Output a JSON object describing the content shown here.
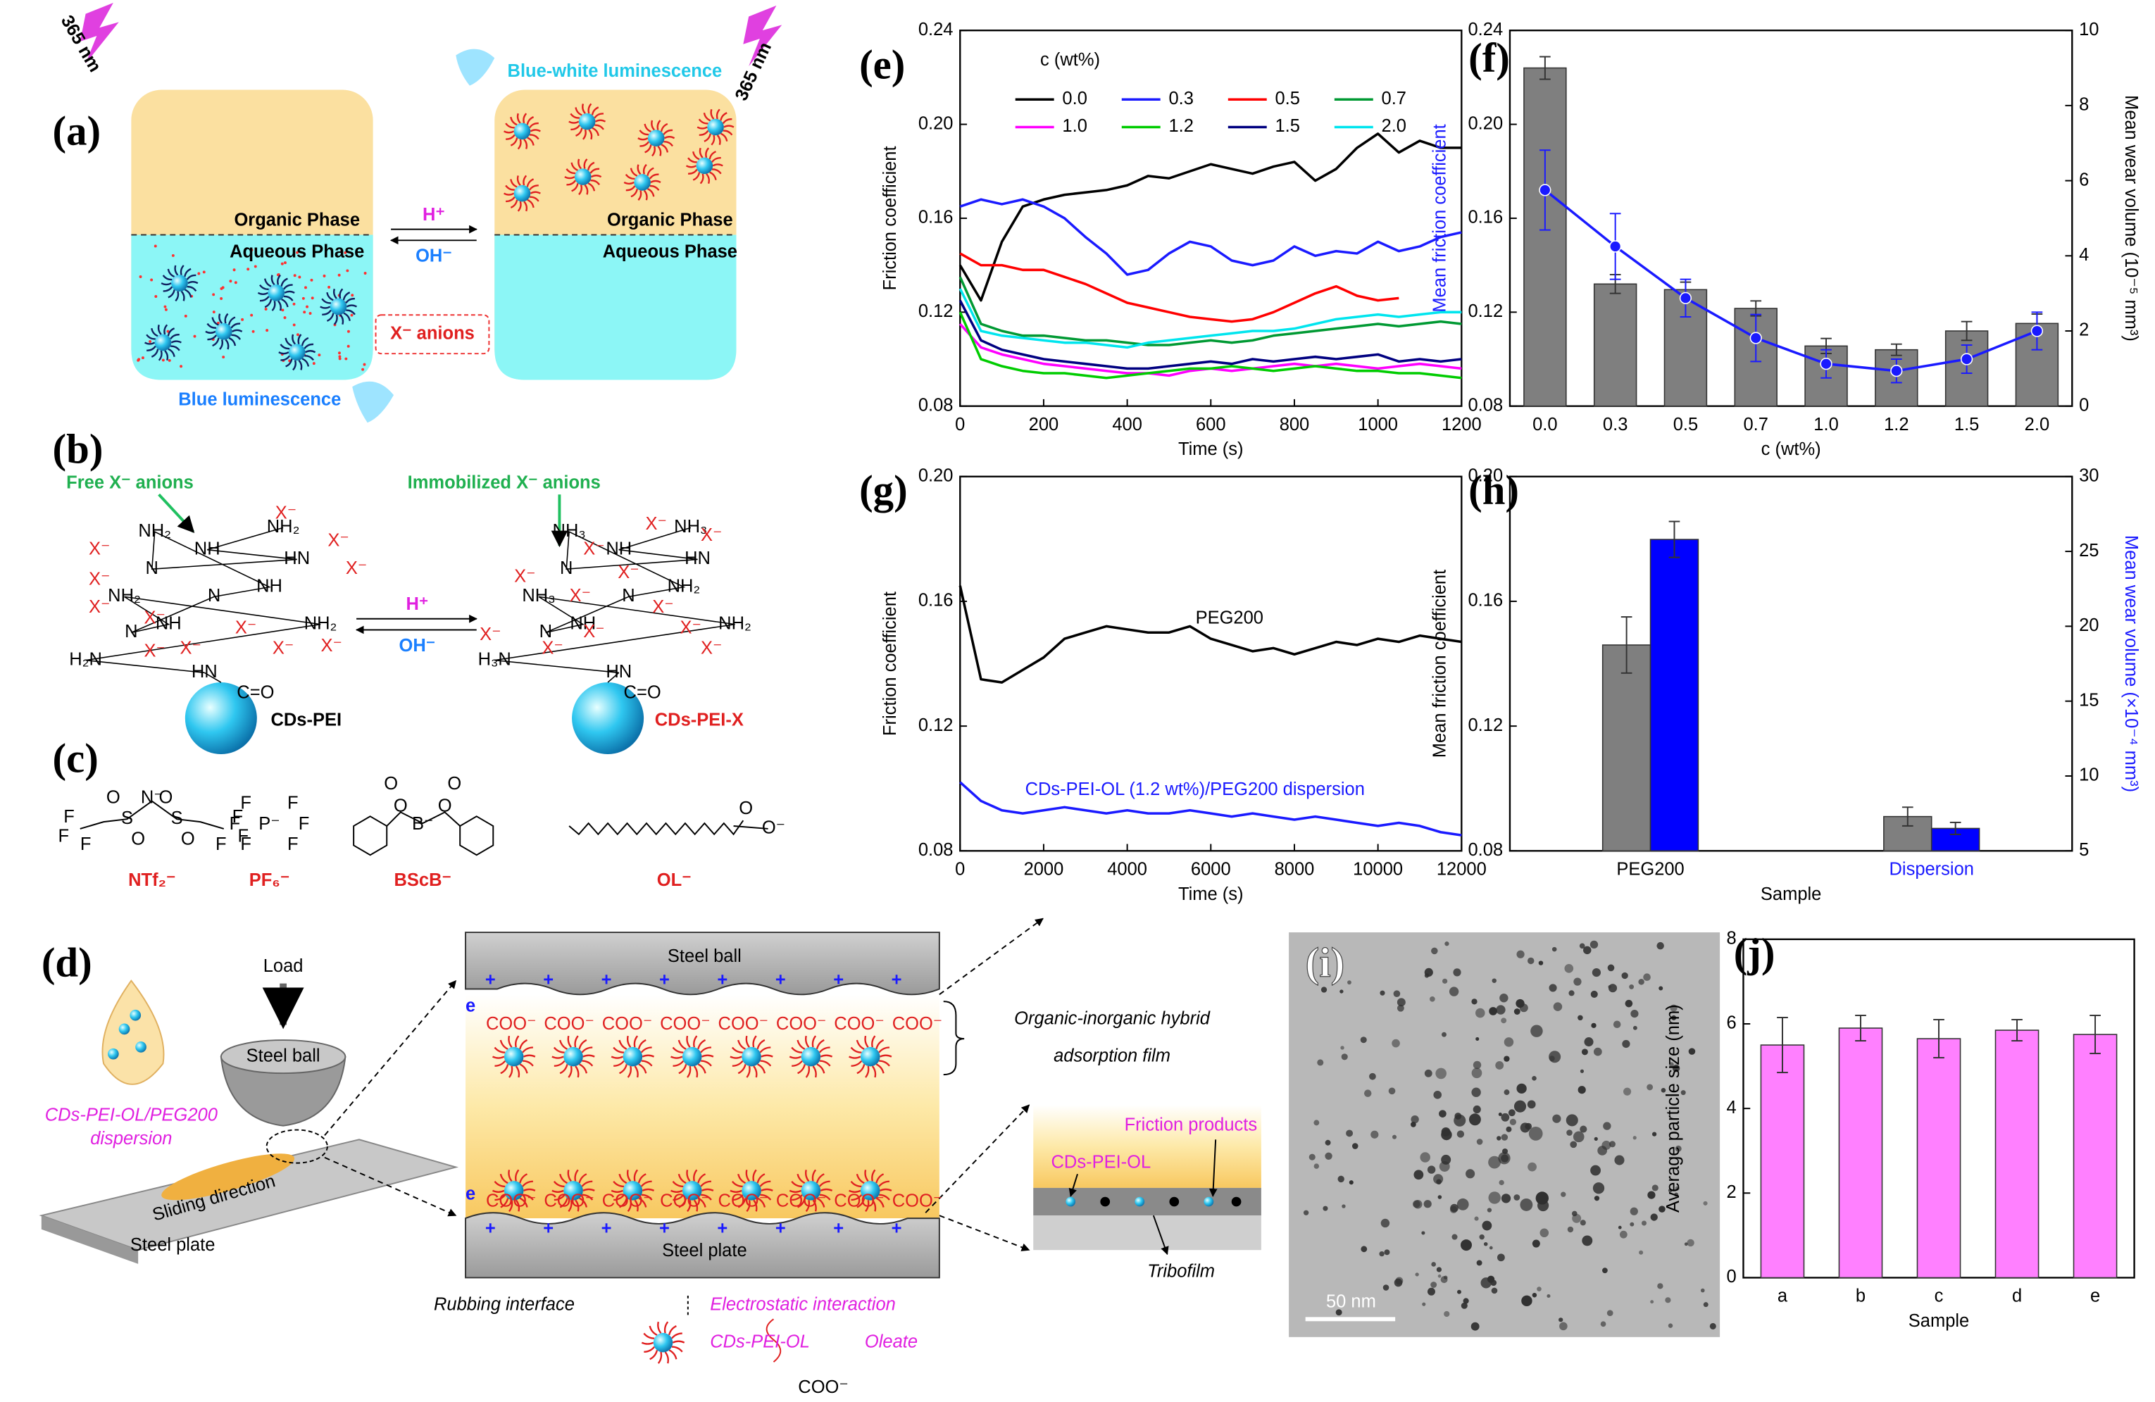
{
  "chart_data": [
    {
      "type": "line",
      "panel": "(e)",
      "xlabel": "Time (s)",
      "ylabel": "Friction coefficient",
      "legend_title": "c (wt%)",
      "legend": "top",
      "x": [
        0,
        50,
        100,
        150,
        200,
        250,
        300,
        350,
        400,
        450,
        500,
        550,
        600,
        650,
        700,
        750,
        800,
        850,
        900,
        950,
        1000,
        1050,
        1100,
        1150,
        1200
      ],
      "series": [
        {
          "name": "0.0",
          "color": "#000000",
          "values": [
            0.14,
            0.125,
            0.15,
            0.165,
            0.168,
            0.17,
            0.171,
            0.172,
            0.174,
            0.178,
            0.177,
            0.18,
            0.183,
            0.181,
            0.179,
            0.182,
            0.184,
            0.176,
            0.181,
            0.19,
            0.196,
            0.188,
            0.193,
            0.19,
            0.19
          ]
        },
        {
          "name": "0.3",
          "color": "#1a1aff",
          "values": [
            0.165,
            0.168,
            0.166,
            0.168,
            0.165,
            0.16,
            0.152,
            0.145,
            0.136,
            0.138,
            0.145,
            0.15,
            0.148,
            0.142,
            0.14,
            0.142,
            0.148,
            0.144,
            0.146,
            0.145,
            0.15,
            0.146,
            0.148,
            0.152,
            0.154
          ]
        },
        {
          "name": "0.5",
          "color": "#ff0000",
          "values": [
            0.145,
            0.14,
            0.14,
            0.138,
            0.138,
            0.135,
            0.132,
            0.128,
            0.124,
            0.122,
            0.12,
            0.118,
            0.117,
            0.116,
            0.117,
            0.12,
            0.124,
            0.128,
            0.131,
            0.127,
            0.125,
            0.126,
            null,
            null,
            null
          ]
        },
        {
          "name": "0.7",
          "color": "#009933",
          "values": [
            0.135,
            0.115,
            0.112,
            0.11,
            0.11,
            0.109,
            0.108,
            0.108,
            0.107,
            0.106,
            0.106,
            0.107,
            0.108,
            0.107,
            0.108,
            0.11,
            0.111,
            0.112,
            0.113,
            0.114,
            0.115,
            0.114,
            0.115,
            0.116,
            0.115
          ]
        },
        {
          "name": "1.0",
          "color": "#ff00ff",
          "values": [
            0.115,
            0.105,
            0.102,
            0.1,
            0.098,
            0.097,
            0.096,
            0.095,
            0.094,
            0.094,
            0.093,
            0.095,
            0.096,
            0.095,
            0.096,
            0.097,
            0.098,
            0.097,
            0.098,
            0.097,
            0.096,
            0.097,
            0.098,
            0.097,
            0.096
          ]
        },
        {
          "name": "1.2",
          "color": "#00cc00",
          "values": [
            0.12,
            0.1,
            0.097,
            0.095,
            0.094,
            0.094,
            0.093,
            0.092,
            0.093,
            0.094,
            0.095,
            0.096,
            0.096,
            0.097,
            0.096,
            0.095,
            0.096,
            0.097,
            0.096,
            0.095,
            0.095,
            0.094,
            0.094,
            0.093,
            0.092
          ]
        },
        {
          "name": "1.5",
          "color": "#000080",
          "values": [
            0.125,
            0.108,
            0.104,
            0.102,
            0.1,
            0.099,
            0.098,
            0.097,
            0.096,
            0.096,
            0.097,
            0.098,
            0.099,
            0.098,
            0.1,
            0.099,
            0.1,
            0.101,
            0.1,
            0.101,
            0.102,
            0.099,
            0.1,
            0.099,
            0.1
          ]
        },
        {
          "name": "2.0",
          "color": "#00e5ee",
          "values": [
            0.13,
            0.112,
            0.11,
            0.109,
            0.108,
            0.107,
            0.107,
            0.106,
            0.105,
            0.107,
            0.108,
            0.109,
            0.11,
            0.111,
            0.112,
            0.112,
            0.113,
            0.115,
            0.117,
            0.118,
            0.119,
            0.118,
            0.119,
            0.12,
            0.12
          ]
        }
      ],
      "xlim": [
        0,
        1200
      ],
      "xticks": [
        0,
        200,
        400,
        600,
        800,
        1000,
        1200
      ],
      "ylim": [
        0.08,
        0.24
      ],
      "yticks": [
        0.08,
        0.12,
        0.16,
        {
          "value": 0.2,
          "label": "0.20"
        },
        0.24
      ]
    },
    {
      "type": "bar",
      "panel": "(f)",
      "categories": [
        "0.0",
        "0.3",
        "0.5",
        "0.7",
        "1.0",
        "1.2",
        "1.5",
        "2.0"
      ],
      "xlabel": "c (wt%)",
      "ylabel": "Mean friction coefficient",
      "ylabel_color": "#1a1aff",
      "y2label": "Mean wear volume (10⁻⁵ mm³)",
      "series": [
        {
          "type": "bar",
          "axis": "y2",
          "color": "#7f7f7f",
          "values": [
            9.0,
            3.25,
            3.1,
            2.6,
            1.6,
            1.5,
            2.0,
            2.2
          ],
          "errors": [
            0.3,
            0.25,
            0.2,
            0.2,
            0.2,
            0.15,
            0.25,
            0.25
          ]
        },
        {
          "type": "line",
          "color": "#1a1aff",
          "values": [
            0.172,
            0.148,
            0.126,
            0.109,
            0.098,
            0.095,
            0.1,
            0.112
          ],
          "errors": [
            0.017,
            0.014,
            0.008,
            0.01,
            0.006,
            0.005,
            0.006,
            0.008
          ]
        }
      ],
      "ylim": [
        0.08,
        0.24
      ],
      "yticks": [
        0.08,
        0.12,
        0.16,
        {
          "value": 0.2,
          "label": "0.20"
        },
        0.24
      ],
      "y2lim": [
        0,
        10
      ],
      "y2ticks": [
        0,
        2,
        4,
        6,
        8,
        10
      ]
    },
    {
      "type": "line",
      "panel": "(g)",
      "xlabel": "Time (s)",
      "ylabel": "Friction coefficient",
      "x": [
        0,
        500,
        1000,
        1500,
        2000,
        2500,
        3000,
        3500,
        4000,
        4500,
        5000,
        5500,
        6000,
        6500,
        7000,
        7500,
        8000,
        8500,
        9000,
        9500,
        10000,
        10500,
        11000,
        11500,
        12000
      ],
      "series": [
        {
          "color": "#000000",
          "values": [
            0.165,
            0.135,
            0.134,
            0.138,
            0.142,
            0.148,
            0.15,
            0.152,
            0.151,
            0.15,
            0.15,
            0.152,
            0.148,
            0.146,
            0.144,
            0.145,
            0.143,
            0.145,
            0.147,
            0.146,
            0.148,
            0.147,
            0.149,
            0.148,
            0.147
          ]
        },
        {
          "color": "#1a1aff",
          "values": [
            0.102,
            0.096,
            0.093,
            0.092,
            0.093,
            0.094,
            0.093,
            0.092,
            0.093,
            0.092,
            0.092,
            0.093,
            0.092,
            0.091,
            0.092,
            0.091,
            0.09,
            0.091,
            0.09,
            0.089,
            0.088,
            0.089,
            0.088,
            0.086,
            0.085
          ]
        }
      ],
      "annotations": [
        {
          "text": "PEG200",
          "color": "#000000"
        },
        {
          "text": "CDs-PEI-OL (1.2 wt%)/PEG200 dispersion",
          "color": "#1a1aff"
        }
      ],
      "xlim": [
        0,
        12000
      ],
      "xticks": [
        0,
        2000,
        4000,
        6000,
        8000,
        10000,
        12000
      ],
      "ylim": [
        0.08,
        0.2
      ],
      "yticks": [
        0.08,
        0.12,
        0.16,
        {
          "value": 0.2,
          "label": "0.20"
        }
      ]
    },
    {
      "type": "bar",
      "panel": "(h)",
      "categories": [
        "PEG200",
        "Dispersion"
      ],
      "category_colors": [
        "#000000",
        "#1a1aff"
      ],
      "xlabel": "Sample",
      "ylabel": "Mean friction coefficient",
      "y2label": "Mean wear volume (×10⁻⁴ mm³)",
      "y2label_color": "#1a1aff",
      "series": [
        {
          "type": "bar",
          "color": "#7f7f7f",
          "values": [
            0.146,
            0.091
          ],
          "errors": [
            0.009,
            0.003
          ]
        },
        {
          "type": "bar",
          "axis": "y2",
          "color": "#0000ff",
          "values": [
            25.8,
            6.5
          ],
          "errors": [
            1.2,
            0.4
          ]
        }
      ],
      "ylim": [
        0.08,
        0.2
      ],
      "yticks": [
        0.08,
        0.12,
        0.16,
        {
          "value": 0.2,
          "label": "0.20"
        }
      ],
      "y2lim": [
        5,
        30
      ],
      "y2ticks": [
        5,
        10,
        15,
        20,
        25,
        30
      ]
    },
    {
      "type": "bar",
      "panel": "(j)",
      "categories": [
        "a",
        "b",
        "c",
        "d",
        "e"
      ],
      "xlabel": "Sample",
      "ylabel": "Average particle size (nm)",
      "series": [
        {
          "type": "bar",
          "color": "#ff80ff",
          "values": [
            5.5,
            5.9,
            5.65,
            5.85,
            5.75
          ],
          "errors": [
            0.65,
            0.3,
            0.45,
            0.25,
            0.45
          ]
        }
      ],
      "ylim": [
        0,
        8
      ],
      "yticks": [
        0,
        2,
        4,
        6,
        8
      ]
    }
  ],
  "panels": {
    "a": {
      "label": "(a)",
      "uv": "365 nm",
      "blue_white": "Blue-white luminescence",
      "organic": "Organic Phase",
      "aqueous": "Aqueous Phase",
      "h": "H⁺",
      "oh": "OH⁻",
      "anions": "X⁻ anions",
      "blue": "Blue luminescence"
    },
    "b": {
      "label": "(b)",
      "free": "Free X⁻ anions",
      "immobilized": "Immobilized X⁻ anions",
      "h": "H⁺",
      "oh": "OH⁻",
      "cds_pei": "CDs-PEI",
      "cds_pei_x": "CDs-PEI-X",
      "anion": "X⁻",
      "atoms_left": [
        "NH₂",
        "NH",
        "HN",
        "N",
        "NH₂",
        "NH",
        "N",
        "N",
        "NH",
        "NH₂",
        "NH₂",
        "H₂N",
        "HN",
        "C=O"
      ],
      "atoms_right": [
        "NH₃",
        "NH",
        "HN",
        "N",
        "NH₃",
        "NH₂",
        "N",
        "N",
        "NH",
        "NH₃",
        "NH₂",
        "H₃N",
        "HN",
        "C=O"
      ]
    },
    "c": {
      "label": "(c)",
      "names": [
        "NTf₂⁻",
        "PF₆⁻",
        "BScB⁻",
        "OL⁻"
      ],
      "atoms": [
        "F",
        "F",
        "F",
        "S",
        "O",
        "O",
        "N⁻",
        "S",
        "O",
        "O",
        "F",
        "F",
        "F",
        "P⁻",
        "F",
        "F",
        "F",
        "F",
        "F",
        "F",
        "B⁻",
        "O",
        "O",
        "O",
        "O",
        "O",
        "O⁻"
      ]
    },
    "d": {
      "label": "(d)",
      "load": "Load",
      "steel_ball": "Steel ball",
      "dispersion": [
        "CDs-PEI-OL/PEG200",
        "dispersion"
      ],
      "sliding": "Sliding direction",
      "steel_plate": "Steel plate",
      "electron": "e",
      "carboxylate": "COO⁻",
      "plus": "+",
      "film": [
        "Organic-inorganic hybrid",
        "adsorption film"
      ],
      "friction_products": "Friction products",
      "particle": "CDs-PEI-OL",
      "tribofilm": "Tribofilm",
      "interface": "Rubbing interface",
      "electrostatic": "Electrostatic interaction",
      "oleate": "Oleate"
    },
    "i": {
      "label": "(i)",
      "scale": "50 nm"
    }
  }
}
